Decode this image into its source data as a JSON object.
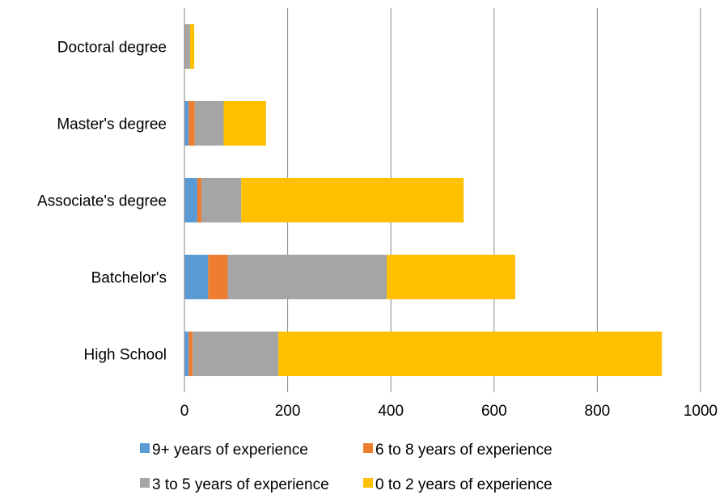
{
  "chart_data": {
    "type": "bar",
    "orientation": "horizontal",
    "stacked": true,
    "categories": [
      "Doctoral degree",
      "Master's degree",
      "Associate's degree",
      "Batchelor's",
      "High School"
    ],
    "series": [
      {
        "name": "9+ years of experience",
        "color": "#5b9bd5",
        "values": [
          2,
          8,
          25,
          46,
          8
        ]
      },
      {
        "name": "6 to 8 years of experience",
        "color": "#ed7d31",
        "values": [
          1,
          12,
          8,
          38,
          8
        ]
      },
      {
        "name": "3 to 5 years of experience",
        "color": "#a5a5a5",
        "values": [
          8,
          56,
          77,
          308,
          166
        ]
      },
      {
        "name": "0 to 2 years of experience",
        "color": "#ffc000",
        "values": [
          8,
          82,
          431,
          249,
          743
        ]
      }
    ],
    "x_ticks": [
      "0",
      "200",
      "400",
      "600",
      "800",
      "1000"
    ],
    "xlim": [
      0,
      1000
    ],
    "grid": true,
    "legend_position": "bottom"
  }
}
